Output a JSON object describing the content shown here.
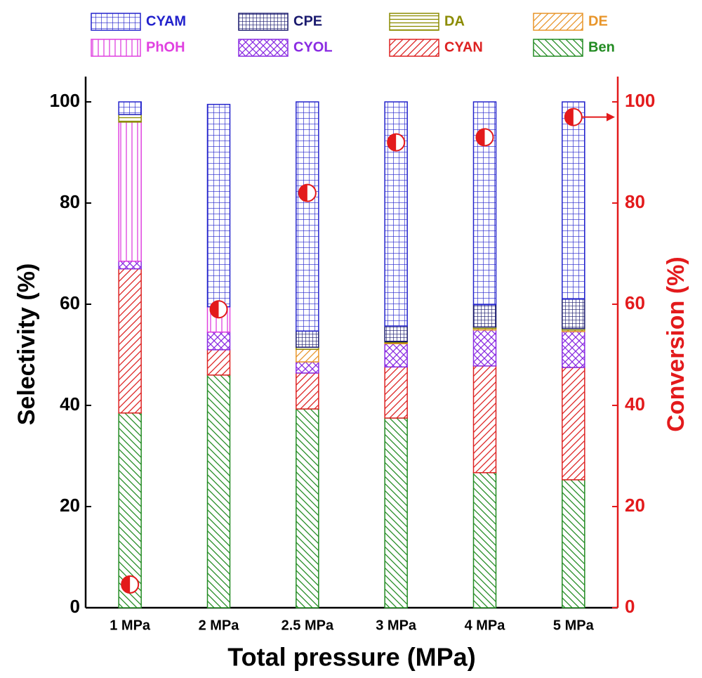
{
  "chart_data": {
    "type": "bar",
    "stacked": true,
    "categories": [
      "1 MPa",
      "2 MPa",
      "2.5 MPa",
      "3 MPa",
      "4 MPa",
      "5 MPa"
    ],
    "xlabel": "Total pressure (MPa)",
    "ylabel": "Selectivity (%)",
    "y2label": "Conversion (%)",
    "ylim": [
      0,
      105
    ],
    "yticks": [
      0,
      20,
      40,
      60,
      80,
      100
    ],
    "y2lim": [
      0,
      105
    ],
    "y2ticks": [
      0,
      20,
      40,
      60,
      80,
      100
    ],
    "y2color": "#e31a1c",
    "series": [
      {
        "name": "Ben",
        "color": "#228b22",
        "pattern": "back",
        "values": [
          38.5,
          46,
          39.3,
          37.5,
          26.7,
          25.3
        ]
      },
      {
        "name": "CYAN",
        "color": "#dd2222",
        "pattern": "forward",
        "values": [
          28.5,
          5,
          7.1,
          10.1,
          21.1,
          22.2
        ]
      },
      {
        "name": "CYOL",
        "color": "#8a2be2",
        "pattern": "cross",
        "values": [
          1.5,
          3.5,
          2.2,
          4.6,
          7.1,
          7.1
        ]
      },
      {
        "name": "PhOH",
        "color": "#e040e0",
        "pattern": "vertical",
        "values": [
          27.5,
          5,
          0,
          0,
          0,
          0
        ]
      },
      {
        "name": "DE",
        "color": "#e8952a",
        "pattern": "forward",
        "values": [
          0,
          0,
          2.5,
          0.2,
          0.3,
          0.3
        ]
      },
      {
        "name": "DA",
        "color": "#8b8b00",
        "pattern": "horizontal",
        "values": [
          1.5,
          0,
          0.4,
          0.2,
          0.3,
          0.3
        ]
      },
      {
        "name": "CPE",
        "color": "#1a1a6e",
        "pattern": "dense-grid",
        "values": [
          0,
          0,
          3.2,
          3.1,
          4.4,
          5.8
        ]
      },
      {
        "name": "CYAM",
        "color": "#2222cc",
        "pattern": "grid",
        "values": [
          2.5,
          40,
          45.3,
          44.3,
          40.1,
          39
        ]
      }
    ],
    "legend_order": [
      "CYAM",
      "CPE",
      "DA",
      "DE",
      "PhOH",
      "CYOL",
      "CYAN",
      "Ben"
    ],
    "points": {
      "color": "#e31a1c",
      "axis": "y2",
      "values": [
        4.6,
        59,
        82,
        92,
        93,
        97
      ]
    }
  }
}
